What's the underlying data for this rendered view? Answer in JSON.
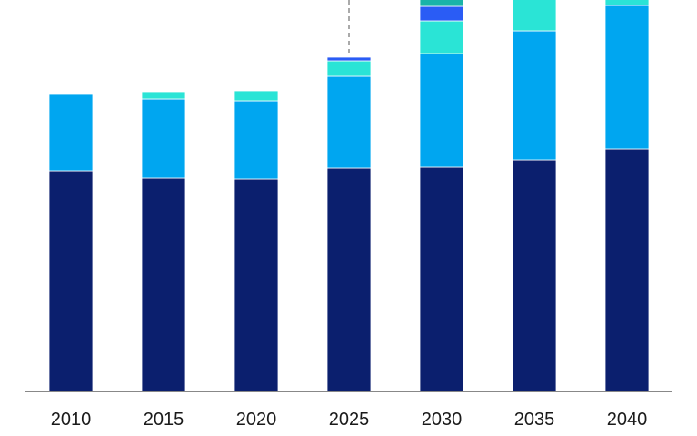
{
  "chart_data": {
    "type": "bar",
    "stacked": true,
    "categories": [
      "2010",
      "2015",
      "2020",
      "2025",
      "2030",
      "2035",
      "2040"
    ],
    "series": [
      {
        "values": [
          243,
          235,
          234,
          246,
          247,
          255,
          267
        ],
        "color": "#0b1f6e"
      },
      {
        "values": [
          84,
          87,
          86,
          101,
          125,
          142,
          158
        ],
        "color": "#00a6f0"
      },
      {
        "values": [
          0,
          8,
          11,
          17,
          36,
          38,
          7
        ],
        "color": "#2ae4d6"
      },
      {
        "values": [
          0,
          0,
          0,
          4,
          16,
          0,
          0
        ],
        "color": "#2a5cf5"
      },
      {
        "values": [
          0,
          0,
          0,
          0,
          8,
          0,
          0
        ],
        "color": "#1ab3a8"
      }
    ],
    "ylim": [
      0,
      431
    ],
    "annotations": [
      {
        "type": "dashed-vertical-line",
        "between_categories": [
          "2025",
          "2030"
        ]
      }
    ],
    "title": "",
    "xlabel": "",
    "ylabel": "",
    "grid": false,
    "legend": "none"
  }
}
